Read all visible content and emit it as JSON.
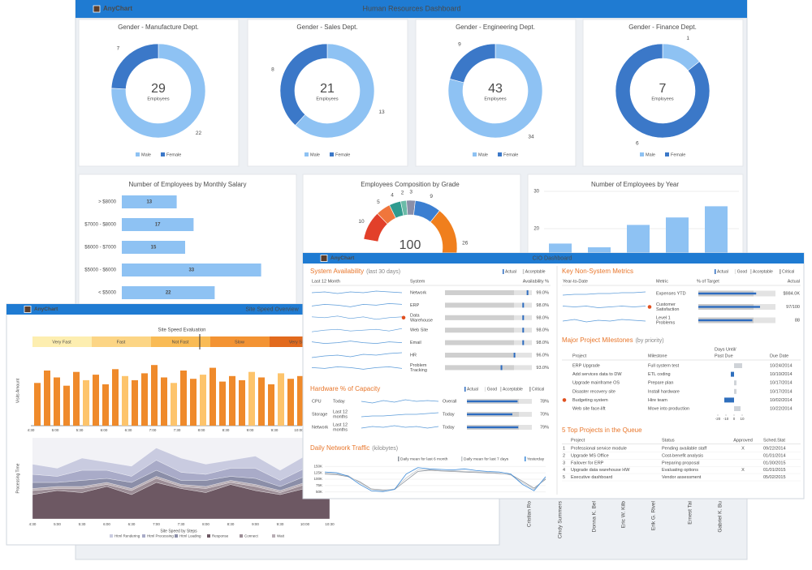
{
  "hr": {
    "logo": "AnyChart",
    "title": "Human Resources Dashboard",
    "gender_series": [
      {
        "name": "Male",
        "color": "#8ec2f3"
      },
      {
        "name": "Female",
        "color": "#3b78c8"
      }
    ],
    "gender": [
      {
        "title": "Gender - Manufacture Dept.",
        "total": 29,
        "total_label": "Employees",
        "values": [
          22,
          7
        ]
      },
      {
        "title": "Gender - Sales Dept.",
        "total": 21,
        "total_label": "Employees",
        "values": [
          13,
          8
        ]
      },
      {
        "title": "Gender - Engineering Dept.",
        "total": 43,
        "total_label": "Employees",
        "values": [
          34,
          9
        ]
      },
      {
        "title": "Gender - Finance Dept.",
        "total": 7,
        "total_label": "Employees",
        "values": [
          1,
          6
        ]
      }
    ],
    "salary": {
      "title": "Number of Employees by Monthly Salary",
      "categories": [
        "> $8000",
        "$7000 - $8000",
        "$6000 - $7000",
        "$5000 - $6000",
        "< $5000"
      ],
      "values": [
        13,
        17,
        15,
        33,
        22
      ],
      "color": "#8ec2f3"
    },
    "grade": {
      "title": "Employees Composition by Grade",
      "total": 100,
      "values": [
        10,
        5,
        4,
        2,
        3,
        9,
        26
      ],
      "colors": [
        "#e2402a",
        "#f0763c",
        "#2f9b8f",
        "#6bbba8",
        "#8b8fa8",
        "#3b7fd1",
        "#f07f1d"
      ]
    },
    "year": {
      "title": "Number of Employees by Year",
      "values": [
        16,
        15,
        21,
        23,
        26
      ],
      "color": "#8ec2f3",
      "ylim": [
        0,
        30
      ],
      "yticks": [
        20,
        30
      ]
    },
    "names": [
      "Cristian Ro",
      "Cindy Summers",
      "Donna K. Bel",
      "Eric W. Kilb",
      "Erik G. Rivel",
      "Ernest Tai",
      "Gabriel K. Bu"
    ]
  },
  "site": {
    "logo": "AnyChart",
    "title": "Site Speed Overview",
    "evaluation": {
      "title": "Site Speed Evaluation",
      "bands": [
        {
          "label": "Very Fast",
          "color": "#fdeeb0"
        },
        {
          "label": "Fast",
          "color": "#fcd585"
        },
        {
          "label": "Not Fast",
          "color": "#f9bb55"
        },
        {
          "label": "Slow",
          "color": "#f39333"
        },
        {
          "label": "Very Slow",
          "color": "#e26a1d"
        }
      ]
    },
    "visits": {
      "y_label": "Visits Amount",
      "xtick_labels": [
        "4:30",
        "5:00",
        "5:30",
        "6:00",
        "6:30",
        "7:00",
        "7:30",
        "8:00",
        "8:30",
        "9:00",
        "9:30",
        "10:00"
      ],
      "ylim": [
        0,
        100
      ],
      "values": [
        62,
        80,
        70,
        58,
        78,
        66,
        74,
        60,
        82,
        72,
        66,
        76,
        88,
        70,
        62,
        80,
        68,
        74,
        84,
        64,
        72,
        66,
        78,
        70,
        60,
        76,
        68,
        72
      ],
      "colors": [
        "#ef8a2b",
        "#ef8a2b",
        "#ef8a2b",
        "#ef8a2b",
        "#ef8a2b",
        "#fdc46c",
        "#ef8a2b",
        "#ef8a2b",
        "#ef8a2b",
        "#fdc46c",
        "#ef8a2b",
        "#ef8a2b",
        "#ef8a2b",
        "#ef8a2b",
        "#fdc46c",
        "#ef8a2b",
        "#ef8a2b",
        "#fdc46c",
        "#ef8a2b",
        "#ef8a2b",
        "#ef8a2b",
        "#ef8a2b",
        "#fdc46c",
        "#ef8a2b",
        "#ef8a2b",
        "#fdc46c",
        "#ef8a2b",
        "#ef8a2b"
      ]
    },
    "timing": {
      "y_label": "Processing Time",
      "x_label": "Site Speed by Steps",
      "categories": [
        "4:30",
        "5:00",
        "5:30",
        "6:00",
        "6:30",
        "7:00",
        "7:30",
        "8:00",
        "8:30",
        "9:00",
        "9:30",
        "10:00",
        "10:30"
      ],
      "ylim": [
        0,
        4
      ],
      "series": [
        {
          "name": "Html Rendering",
          "color": "#c9cbe0",
          "values": [
            0.5,
            0.4,
            0.6,
            0.4,
            0.5,
            0.6,
            0.7,
            0.5,
            0.4,
            0.6,
            0.5,
            0.6,
            0.4
          ]
        },
        {
          "name": "Html Processing",
          "color": "#a9abc8",
          "values": [
            0.4,
            0.3,
            0.5,
            0.4,
            0.3,
            0.5,
            0.4,
            0.3,
            0.4,
            0.5,
            0.3,
            0.4,
            0.3
          ]
        },
        {
          "name": "Html Loading",
          "color": "#8b8ea8",
          "values": [
            0.3,
            0.2,
            0.3,
            0.2,
            0.3,
            0.3,
            0.2,
            0.3,
            0.2,
            0.3,
            0.2,
            0.3,
            0.2
          ]
        },
        {
          "name": "Response",
          "color": "#6d5863",
          "values": [
            1.2,
            1.4,
            1.3,
            1.6,
            1.2,
            1.8,
            1.5,
            1.3,
            1.7,
            1.4,
            1.2,
            1.5,
            1.3
          ]
        },
        {
          "name": "Connect",
          "color": "#9c8d96",
          "values": [
            0.2,
            0.1,
            0.2,
            0.1,
            0.2,
            0.2,
            0.1,
            0.2,
            0.1,
            0.2,
            0.1,
            0.2,
            0.1
          ]
        },
        {
          "name": "Wait",
          "color": "#b8adb4",
          "values": [
            0.1,
            0.1,
            0.1,
            0.1,
            0.1,
            0.1,
            0.1,
            0.1,
            0.1,
            0.1,
            0.1,
            0.1,
            0.1
          ]
        }
      ]
    }
  },
  "cio": {
    "logo": "AnyChart",
    "title": "CIO Dashboard",
    "legend": [
      {
        "name": "Actual",
        "color": "#2d6cc0"
      },
      {
        "name": "Good",
        "color": "#e3e3e3"
      },
      {
        "name": "Acceptable",
        "color": "#c9c9c9"
      },
      {
        "name": "Critical",
        "color": "#a5a5a5"
      }
    ],
    "availability": {
      "title": "System Availability",
      "subtitle": "(last 30 days)",
      "legend": [
        "Actual",
        "Acceptable"
      ],
      "headers": [
        "Last 12 Month",
        "System",
        "Availability %"
      ],
      "rows": [
        {
          "name": [
            "Network"
          ],
          "value": 99,
          "value_label": "99.0%",
          "trend": [
            5,
            6,
            4,
            6,
            5,
            7,
            6,
            5
          ]
        },
        {
          "name": [
            "ERP"
          ],
          "value": 98,
          "value_label": "98.0%",
          "trend": [
            4,
            6,
            5,
            3,
            6,
            5,
            7,
            6
          ]
        },
        {
          "name": [
            "Data",
            "Warehouse"
          ],
          "alert": true,
          "value": 98,
          "value_label": "98.0%",
          "trend": [
            6,
            5,
            7,
            4,
            6,
            3,
            5,
            6
          ]
        },
        {
          "name": [
            "Web Site"
          ],
          "value": 98,
          "value_label": "98.0%",
          "trend": [
            3,
            5,
            6,
            4,
            5,
            6,
            4,
            7
          ]
        },
        {
          "name": [
            "Email"
          ],
          "value": 98,
          "value_label": "98.0%",
          "trend": [
            6,
            4,
            5,
            7,
            5,
            4,
            6,
            5
          ]
        },
        {
          "name": [
            "HR"
          ],
          "value": 96,
          "value_label": "96.0%",
          "trend": [
            2,
            4,
            5,
            3,
            6,
            5,
            7,
            8
          ]
        },
        {
          "name": [
            "Problem",
            "Tracking"
          ],
          "value": 93,
          "value_label": "93.0%",
          "trend": [
            5,
            4,
            6,
            5,
            3,
            5,
            6,
            4
          ]
        }
      ]
    },
    "hardware": {
      "title": "Hardware % of Capacity",
      "rows": [
        {
          "name": [
            "CPU"
          ],
          "period": [
            "Today"
          ],
          "scope": "Overall",
          "value": 78,
          "value_label": "78%",
          "trend": [
            5,
            3,
            6,
            4,
            7,
            5,
            6,
            5
          ]
        },
        {
          "name": [
            "Storage"
          ],
          "period": [
            "Last 12",
            "months"
          ],
          "scope": "Today",
          "value": 70,
          "value_label": "70%",
          "trend": [
            2,
            3,
            3,
            4,
            5,
            5,
            6,
            7
          ]
        },
        {
          "name": [
            "Network"
          ],
          "period": [
            "Last 12",
            "months"
          ],
          "scope": "Today",
          "value": 79,
          "value_label": "79%",
          "trend": [
            4,
            6,
            5,
            7,
            5,
            6,
            4,
            6
          ]
        }
      ]
    },
    "traffic": {
      "title": "Daily Network Traffic",
      "subtitle": "(kilobytes)",
      "ylim": [
        40000,
        160000
      ],
      "yticks": [
        {
          "value": 50000,
          "label": "50K"
        },
        {
          "value": 75000,
          "label": "75K"
        },
        {
          "value": 100000,
          "label": "100K"
        },
        {
          "value": 125000,
          "label": "125K"
        },
        {
          "value": 150000,
          "label": "150K"
        }
      ],
      "series": [
        {
          "name": "Daily mean for last 6 month",
          "color": "#8f959d",
          "values": [
            120000,
            118000,
            110000,
            90000,
            62000,
            58000,
            60000,
            95000,
            130000,
            135000,
            132000,
            130000,
            128000,
            126000,
            124000,
            122000,
            118000,
            92000,
            65000,
            100000
          ]
        },
        {
          "name": "Daily mean for last 7 days",
          "color": "#c4c8cc",
          "values": [
            124000,
            121000,
            114000,
            86000,
            60000,
            56000,
            62000,
            105000,
            136000,
            138000,
            134000,
            133000,
            131000,
            129000,
            127000,
            124000,
            116000,
            86000,
            60000,
            104000
          ]
        },
        {
          "name": "Yesterday",
          "color": "#3b8ad9",
          "values": [
            128000,
            125000,
            112000,
            80000,
            55000,
            52000,
            60000,
            120000,
            145000,
            140000,
            138000,
            136000,
            140000,
            134000,
            130000,
            128000,
            120000,
            80000,
            55000,
            110000
          ]
        }
      ]
    },
    "metrics": {
      "title": "Key Non-System Metrics",
      "headers": [
        "Year-to-Date",
        "Metric",
        "% of Target",
        "Actual"
      ],
      "rows": [
        {
          "name": [
            "Expenses YTD"
          ],
          "target_pct": 75,
          "value": 984000,
          "value_label": "$984.0K",
          "trend": [
            3,
            4,
            4,
            5,
            5,
            6,
            6,
            7
          ]
        },
        {
          "name": [
            "Customer",
            "Satisfaction"
          ],
          "alert": true,
          "target_pct": 80,
          "value": 97,
          "value_label": "97/100",
          "trend": [
            6,
            5,
            6,
            4,
            5,
            6,
            5,
            6
          ]
        },
        {
          "name": [
            "Level 1",
            "Problems"
          ],
          "target_pct": 70,
          "value": 88,
          "trend": [
            4,
            6,
            3,
            5,
            4,
            6,
            5,
            4
          ]
        }
      ]
    },
    "milestones": {
      "title": "Major Project Milestones",
      "subtitle": "(by priority)",
      "headers": [
        "Project",
        "Milestone",
        [
          "Days Until/",
          "Past Due"
        ],
        "Due Date"
      ],
      "xlim": [
        -20,
        10
      ],
      "xticks": [
        -20,
        -10,
        0,
        10
      ],
      "rows": [
        {
          "project": "ERP Upgrade",
          "milestone": "Full system test",
          "days": 10,
          "due": "10/24/2014"
        },
        {
          "project": "Add services data to DW",
          "milestone": "ETL coding",
          "days": -4,
          "due": "10/10/2014"
        },
        {
          "project": "Upgrade mainframe OS",
          "milestone": "Prepare plan",
          "days": 3,
          "due": "10/17/2014"
        },
        {
          "project": "Disaster recovery site",
          "milestone": "Install hardware",
          "days": 3,
          "due": "10/17/2014"
        },
        {
          "project": "Budgeting system",
          "milestone": "Hire team",
          "alert": true,
          "days": -12,
          "due": "10/02/2014"
        },
        {
          "project": "Web site face-lift",
          "milestone": "Move into production",
          "days": 8,
          "due": "10/22/2014"
        }
      ]
    },
    "queue": {
      "title": "5 Top Projects in the Queue",
      "headers": [
        "Project",
        "Status",
        "Approved",
        "Sched.Stat"
      ],
      "rows": [
        {
          "rank": 1,
          "project": "Professional service module",
          "status": "Pending available staff",
          "approved": "X",
          "date": "09/22/2014"
        },
        {
          "rank": 2,
          "project": "Upgrade MS Office",
          "status": "Cost-benefit analysis",
          "date": "01/01/2014"
        },
        {
          "rank": 3,
          "project": "Failover for ERP",
          "status": "Preparing proposal",
          "date": "01/30/2015"
        },
        {
          "rank": 4,
          "project": "Upgrade data warehouse HW",
          "status": "Evaluating options",
          "approved": "X",
          "date": "01/01/2015"
        },
        {
          "rank": 5,
          "project": "Executive dashboard",
          "status": "Vendor assessment",
          "date": "05/02/2015"
        }
      ]
    }
  }
}
